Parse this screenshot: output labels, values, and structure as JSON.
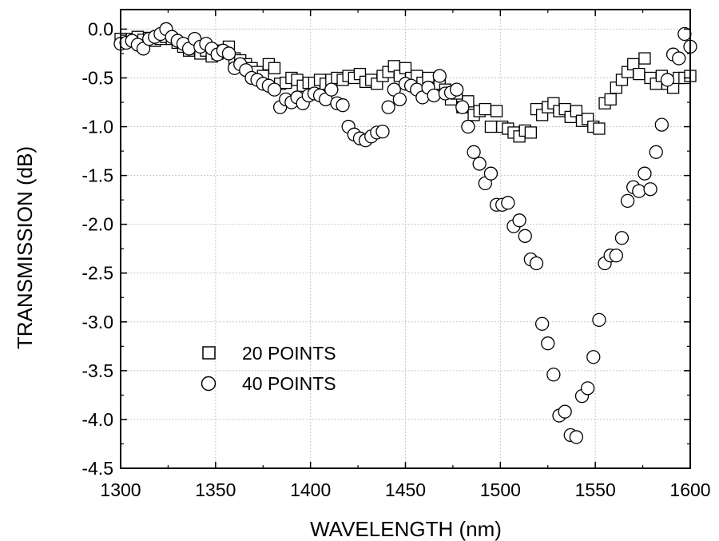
{
  "chart_data": {
    "type": "scatter",
    "title": "",
    "xlabel": "WAVELENGTH (nm)",
    "ylabel": "TRANSMISSION (dB)",
    "xlim": [
      1300,
      1600
    ],
    "ylim": [
      -4.5,
      0.2
    ],
    "xticks": [
      "1300",
      "1350",
      "1400",
      "1450",
      "1500",
      "1550",
      "1600"
    ],
    "yticks": [
      "0.0",
      "-0.5",
      "-1.0",
      "-1.5",
      "-2.0",
      "-2.5",
      "-3.0",
      "-3.5",
      "-4.0",
      "-4.5"
    ],
    "grid": true,
    "legend_position": "lower-left",
    "series": [
      {
        "name": "20 POINTS",
        "marker": "square",
        "x": [
          1300,
          1303,
          1306,
          1309,
          1312,
          1315,
          1318,
          1321,
          1324,
          1327,
          1330,
          1333,
          1336,
          1339,
          1342,
          1345,
          1348,
          1351,
          1354,
          1357,
          1360,
          1363,
          1366,
          1369,
          1372,
          1375,
          1378,
          1381,
          1384,
          1387,
          1390,
          1393,
          1396,
          1399,
          1402,
          1405,
          1408,
          1411,
          1414,
          1417,
          1420,
          1423,
          1426,
          1429,
          1432,
          1435,
          1438,
          1441,
          1444,
          1447,
          1450,
          1453,
          1456,
          1459,
          1462,
          1465,
          1468,
          1471,
          1474,
          1477,
          1480,
          1483,
          1486,
          1489,
          1492,
          1495,
          1498,
          1501,
          1504,
          1507,
          1510,
          1513,
          1516,
          1519,
          1522,
          1525,
          1528,
          1531,
          1534,
          1537,
          1540,
          1543,
          1546,
          1549,
          1552,
          1555,
          1558,
          1561,
          1564,
          1567,
          1570,
          1573,
          1576,
          1579,
          1582,
          1585,
          1588,
          1591,
          1594,
          1597,
          1600
        ],
        "y": [
          -0.1,
          -0.12,
          -0.1,
          -0.08,
          -0.11,
          -0.09,
          -0.12,
          -0.1,
          -0.08,
          -0.1,
          -0.14,
          -0.18,
          -0.22,
          -0.2,
          -0.25,
          -0.22,
          -0.28,
          -0.25,
          -0.22,
          -0.18,
          -0.3,
          -0.32,
          -0.36,
          -0.4,
          -0.44,
          -0.48,
          -0.36,
          -0.4,
          -0.56,
          -0.55,
          -0.5,
          -0.52,
          -0.58,
          -0.55,
          -0.55,
          -0.52,
          -0.56,
          -0.52,
          -0.5,
          -0.52,
          -0.48,
          -0.5,
          -0.46,
          -0.54,
          -0.52,
          -0.56,
          -0.48,
          -0.44,
          -0.38,
          -0.48,
          -0.4,
          -0.5,
          -0.48,
          -0.55,
          -0.5,
          -0.6,
          -0.56,
          -0.62,
          -0.72,
          -0.66,
          -0.8,
          -0.74,
          -0.88,
          -0.84,
          -0.82,
          -1.0,
          -0.84,
          -1.0,
          -1.02,
          -1.06,
          -1.1,
          -1.04,
          -1.06,
          -0.82,
          -0.88,
          -0.8,
          -0.76,
          -0.84,
          -0.82,
          -0.9,
          -0.84,
          -0.94,
          -0.92,
          -1.0,
          -1.02,
          -0.76,
          -0.72,
          -0.6,
          -0.52,
          -0.44,
          -0.36,
          -0.46,
          -0.3,
          -0.5,
          -0.56,
          -0.48,
          -0.56,
          -0.6,
          -0.5,
          -0.5,
          -0.48
        ]
      },
      {
        "name": "40 POINTS",
        "marker": "circle",
        "x": [
          1300,
          1303,
          1306,
          1309,
          1312,
          1315,
          1318,
          1321,
          1324,
          1327,
          1330,
          1333,
          1336,
          1339,
          1342,
          1345,
          1348,
          1351,
          1354,
          1357,
          1360,
          1363,
          1366,
          1369,
          1372,
          1375,
          1378,
          1381,
          1384,
          1387,
          1390,
          1393,
          1396,
          1399,
          1402,
          1405,
          1408,
          1411,
          1414,
          1417,
          1420,
          1423,
          1426,
          1429,
          1432,
          1435,
          1438,
          1441,
          1444,
          1447,
          1450,
          1453,
          1456,
          1459,
          1462,
          1465,
          1468,
          1471,
          1474,
          1477,
          1480,
          1483,
          1486,
          1489,
          1492,
          1495,
          1498,
          1501,
          1504,
          1507,
          1510,
          1513,
          1516,
          1519,
          1522,
          1525,
          1528,
          1531,
          1534,
          1537,
          1540,
          1543,
          1546,
          1549,
          1552,
          1555,
          1558,
          1561,
          1564,
          1567,
          1570,
          1573,
          1576,
          1579,
          1582,
          1585,
          1588,
          1591,
          1594,
          1597,
          1600
        ],
        "y": [
          -0.15,
          -0.14,
          -0.12,
          -0.16,
          -0.2,
          -0.1,
          -0.08,
          -0.05,
          0.0,
          -0.08,
          -0.12,
          -0.15,
          -0.2,
          -0.1,
          -0.18,
          -0.15,
          -0.2,
          -0.26,
          -0.22,
          -0.25,
          -0.4,
          -0.36,
          -0.42,
          -0.5,
          -0.52,
          -0.56,
          -0.58,
          -0.62,
          -0.8,
          -0.72,
          -0.75,
          -0.7,
          -0.76,
          -0.68,
          -0.66,
          -0.68,
          -0.72,
          -0.62,
          -0.76,
          -0.78,
          -1.0,
          -1.08,
          -1.12,
          -1.14,
          -1.1,
          -1.06,
          -1.05,
          -0.8,
          -0.62,
          -0.72,
          -0.56,
          -0.58,
          -0.62,
          -0.7,
          -0.6,
          -0.68,
          -0.48,
          -0.66,
          -0.65,
          -0.62,
          -0.8,
          -1.0,
          -1.26,
          -1.38,
          -1.58,
          -1.48,
          -1.8,
          -1.8,
          -1.78,
          -2.02,
          -1.96,
          -2.12,
          -2.36,
          -2.4,
          -3.02,
          -3.22,
          -3.54,
          -3.96,
          -3.92,
          -4.16,
          -4.18,
          -3.76,
          -3.68,
          -3.36,
          -2.98,
          -2.4,
          -2.32,
          -2.32,
          -2.14,
          -1.76,
          -1.62,
          -1.66,
          -1.48,
          -1.64,
          -1.26,
          -0.98,
          -0.52,
          -0.26,
          -0.3,
          -0.05,
          -0.18
        ]
      }
    ]
  }
}
